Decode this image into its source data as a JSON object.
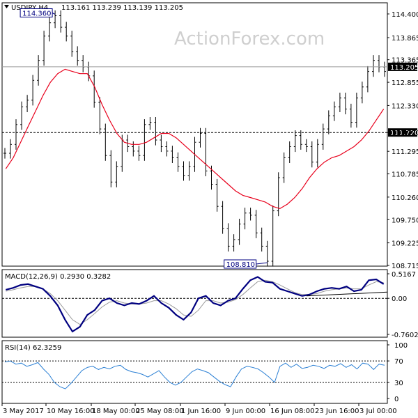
{
  "header": {
    "symbol": "USDJPY,H4",
    "ohlc": "113.161 113.239 113.139 113.205"
  },
  "watermark": "ActionForex.com",
  "colors": {
    "bar": "#000000",
    "ma": "#e8001c",
    "macd": "#000080",
    "signal": "#9a9a9a",
    "rsi": "#2a7fd4",
    "marker": "#000080"
  },
  "chart_data": [
    {
      "type": "line",
      "name": "price",
      "x_tick_labels": [
        "3 May 2017",
        "10 May 16:00",
        "18 May 00:00",
        "25 May 08:00",
        "1 Jun 16:00",
        "9 Jun 00:00",
        "16 Jun 08:00",
        "23 Jun 16:00",
        "3 Jul 00:00"
      ],
      "y_tick_labels": [
        "114.400",
        "113.865",
        "113.365",
        "112.855",
        "112.330",
        "111.720",
        "111.295",
        "110.785",
        "110.260",
        "109.750",
        "109.225",
        "108.715"
      ],
      "ylim": [
        108.715,
        114.4
      ],
      "levels": [
        {
          "label": "113.205",
          "value": 113.205,
          "style": "solid"
        },
        {
          "label": "111.720",
          "value": 111.72,
          "style": "dashed"
        }
      ],
      "annotations": [
        {
          "label": "114.360",
          "value": 114.36
        },
        {
          "label": "108.810",
          "value": 108.81
        }
      ],
      "series": [
        {
          "values": [
            111.25,
            111.45,
            111.9,
            112.3,
            112.45,
            112.9,
            113.35,
            113.9,
            114.2,
            114.36,
            114.1,
            113.9,
            113.55,
            113.35,
            113.2,
            113.0,
            112.4,
            111.8,
            111.2,
            110.6,
            110.95,
            111.55,
            111.4,
            111.3,
            111.2,
            111.9,
            111.95,
            111.55,
            111.4,
            111.3,
            111.15,
            110.95,
            110.75,
            110.95,
            111.5,
            111.7,
            110.85,
            110.55,
            110.05,
            109.55,
            109.15,
            109.3,
            109.65,
            109.9,
            109.85,
            109.45,
            109.15,
            108.81,
            109.95,
            110.7,
            111.15,
            111.4,
            111.65,
            111.45,
            111.4,
            111.05,
            111.45,
            111.8,
            112.1,
            112.3,
            112.5,
            112.25,
            111.95,
            112.5,
            112.75,
            113.1,
            113.35,
            113.2,
            113.1
          ]
        },
        {
          "values": [
            110.9,
            111.15,
            111.5,
            111.85,
            112.2,
            112.55,
            112.85,
            113.05,
            113.15,
            113.1,
            113.05,
            113.05,
            112.75,
            112.35,
            112.0,
            111.7,
            111.5,
            111.45,
            111.45,
            111.5,
            111.6,
            111.7,
            111.7,
            111.6,
            111.45,
            111.3,
            111.15,
            111.0,
            110.85,
            110.7,
            110.55,
            110.4,
            110.3,
            110.25,
            110.2,
            110.15,
            110.05,
            110.0,
            110.1,
            110.25,
            110.45,
            110.7,
            110.9,
            111.05,
            111.15,
            111.2,
            111.3,
            111.4,
            111.55,
            111.75,
            112.0,
            112.25
          ]
        }
      ]
    },
    {
      "type": "line",
      "name": "macd",
      "label": "MACD(12,26,9) 0.2930 0.3282",
      "y_tick_labels": [
        "0.5167",
        "0.00",
        "-0.7602"
      ],
      "ylim": [
        -0.7602,
        0.5167
      ],
      "series": [
        {
          "values": [
            0.18,
            0.22,
            0.28,
            0.3,
            0.25,
            0.2,
            0.05,
            -0.15,
            -0.45,
            -0.7,
            -0.6,
            -0.35,
            -0.25,
            -0.05,
            0.0,
            -0.1,
            -0.15,
            -0.1,
            -0.12,
            -0.05,
            0.05,
            -0.1,
            -0.2,
            -0.35,
            -0.45,
            -0.3,
            0.0,
            0.05,
            -0.1,
            -0.15,
            -0.05,
            0.0,
            0.2,
            0.38,
            0.45,
            0.35,
            0.33,
            0.2,
            0.15,
            0.1,
            0.05,
            0.08,
            0.15,
            0.2,
            0.22,
            0.2,
            0.25,
            0.15,
            0.18,
            0.38,
            0.4,
            0.3
          ]
        },
        {
          "values": [
            0.15,
            0.18,
            0.22,
            0.25,
            0.25,
            0.2,
            0.1,
            -0.05,
            -0.25,
            -0.45,
            -0.55,
            -0.45,
            -0.32,
            -0.18,
            -0.08,
            -0.05,
            -0.1,
            -0.12,
            -0.12,
            -0.1,
            -0.05,
            -0.05,
            -0.12,
            -0.22,
            -0.35,
            -0.38,
            -0.25,
            -0.05,
            -0.05,
            -0.1,
            -0.08,
            -0.03,
            0.08,
            0.22,
            0.35,
            0.38,
            0.35,
            0.28,
            0.2,
            0.12,
            0.08,
            0.08,
            0.1,
            0.15,
            0.18,
            0.2,
            0.22,
            0.2,
            0.2,
            0.28,
            0.35,
            0.33
          ]
        }
      ],
      "trendline": [
        0.05,
        0.13
      ]
    },
    {
      "type": "line",
      "name": "rsi",
      "label": "RSI(14) 62.3259",
      "y_tick_labels": [
        "100",
        "70",
        "30",
        "0"
      ],
      "ylim": [
        0,
        100
      ],
      "levels": [
        70,
        30
      ],
      "series": [
        {
          "values": [
            68,
            70,
            64,
            66,
            60,
            63,
            67,
            55,
            45,
            30,
            22,
            18,
            28,
            40,
            52,
            58,
            60,
            54,
            58,
            55,
            60,
            62,
            54,
            50,
            48,
            45,
            40,
            46,
            52,
            40,
            30,
            25,
            30,
            40,
            50,
            55,
            52,
            48,
            40,
            32,
            26,
            22,
            40,
            55,
            60,
            58,
            55,
            48,
            40,
            30,
            60,
            66,
            58,
            64,
            56,
            58,
            62,
            60,
            56,
            62,
            60,
            65,
            58,
            63,
            55,
            66,
            64,
            54,
            64,
            62
          ]
        }
      ]
    }
  ]
}
